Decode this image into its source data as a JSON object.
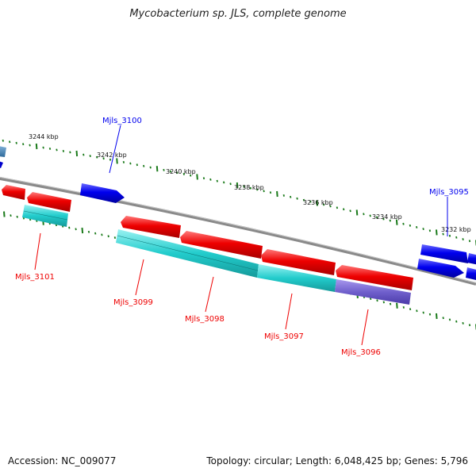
{
  "title": "Mycobacterium sp. JLS, complete genome",
  "footer": {
    "accession": "Accession: NC_009077",
    "info": "Topology: circular; Length: 6,048,425 bp; Genes: 5,796"
  },
  "scale_labels": [
    "3244 kbp",
    "3242 kbp",
    "3240 kbp",
    "3238 kbp",
    "3236 kbp",
    "3234 kbp",
    "3232 kbp"
  ],
  "gene_labels": {
    "top": [
      "Mjls_3100",
      "Mjls_3095"
    ],
    "bottom": [
      "Mjls_3101",
      "Mjls_3099",
      "Mjls_3098",
      "Mjls_3097",
      "Mjls_3096"
    ]
  },
  "colors": {
    "forward": "#0000ee",
    "reverse": "#ee0000",
    "cyan": "#22cccc",
    "purple": "#7060cc",
    "backbone": "#888888",
    "tick": "#1a7a1a"
  }
}
